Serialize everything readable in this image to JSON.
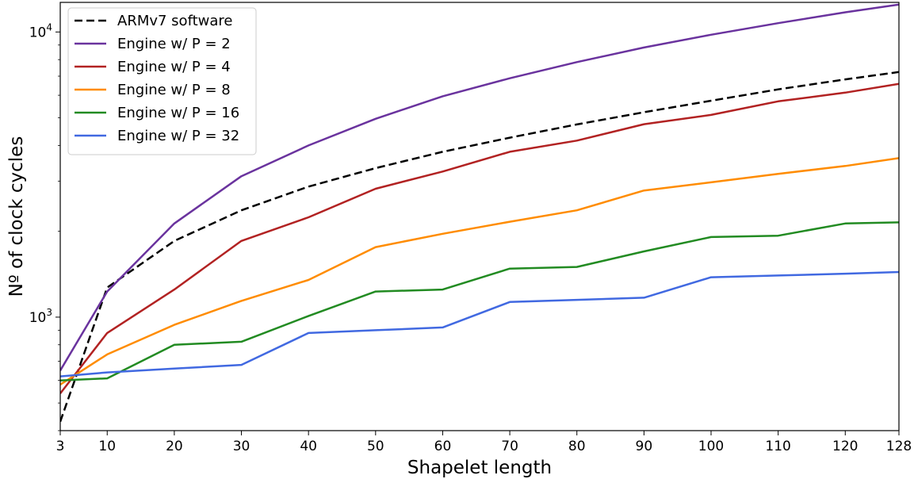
{
  "chart_data": {
    "type": "line",
    "xlabel": "Shapelet length",
    "ylabel": "Nº of clock cycles",
    "xlim": [
      3,
      128
    ],
    "ylim": [
      400,
      12700
    ],
    "yscale": "log",
    "grid": false,
    "legend_position": "top-left",
    "x_ticks": [
      3,
      10,
      20,
      30,
      40,
      50,
      60,
      70,
      80,
      90,
      100,
      110,
      120,
      128
    ],
    "x_tick_labels": [
      "3",
      "10",
      "20",
      "30",
      "40",
      "50",
      "60",
      "70",
      "80",
      "90",
      "100",
      "110",
      "120",
      "128"
    ],
    "y_ticks": [
      {
        "value": 1000,
        "base": "10",
        "exp": "3"
      },
      {
        "value": 10000,
        "base": "10",
        "exp": "4"
      }
    ],
    "x": [
      3,
      10,
      20,
      30,
      40,
      50,
      60,
      70,
      80,
      90,
      100,
      110,
      120,
      128
    ],
    "series": [
      {
        "name": "ARMv7 software",
        "color": "#000000",
        "dashed": true,
        "values": [
          430,
          1270,
          1850,
          2370,
          2870,
          3330,
          3800,
          4260,
          4740,
          5230,
          5740,
          6290,
          6820,
          7240
        ]
      },
      {
        "name": "Engine w/ P = 2",
        "color": "#6a339e",
        "dashed": false,
        "values": [
          650,
          1230,
          2130,
          3120,
          4000,
          4960,
          5950,
          6880,
          7840,
          8820,
          9780,
          10740,
          11720,
          12480
        ]
      },
      {
        "name": "Engine w/ P = 4",
        "color": "#b22222",
        "dashed": false,
        "values": [
          540,
          880,
          1250,
          1850,
          2240,
          2820,
          3240,
          3800,
          4160,
          4750,
          5120,
          5710,
          6130,
          6580
        ]
      },
      {
        "name": "Engine w/ P = 8",
        "color": "#ff8c00",
        "dashed": false,
        "values": [
          580,
          740,
          940,
          1140,
          1350,
          1760,
          1960,
          2160,
          2370,
          2780,
          2970,
          3180,
          3390,
          3610
        ]
      },
      {
        "name": "Engine w/ P = 16",
        "color": "#228b22",
        "dashed": false,
        "values": [
          600,
          610,
          800,
          820,
          1010,
          1230,
          1250,
          1480,
          1500,
          1700,
          1910,
          1930,
          2130,
          2150
        ]
      },
      {
        "name": "Engine w/ P = 32",
        "color": "#4169e1",
        "dashed": false,
        "values": [
          620,
          640,
          660,
          680,
          880,
          900,
          920,
          1130,
          1150,
          1170,
          1380,
          1400,
          1420,
          1440
        ]
      }
    ]
  }
}
